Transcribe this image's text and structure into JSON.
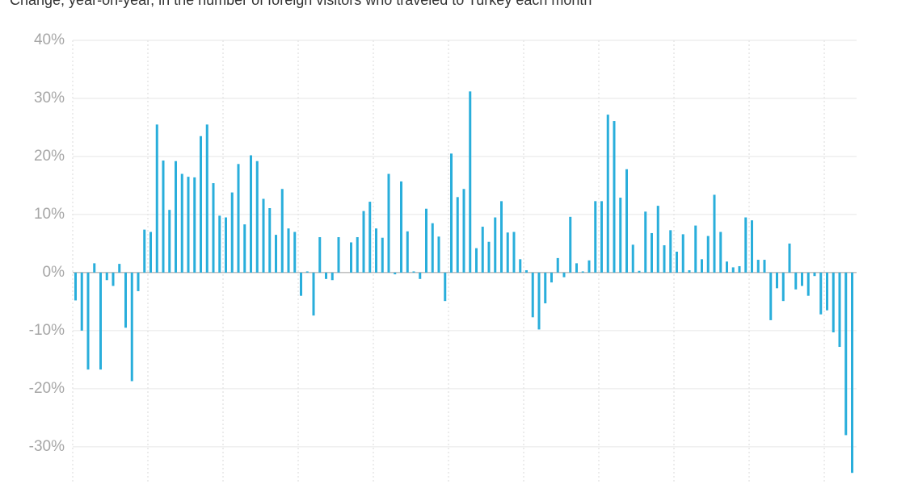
{
  "chart_data": {
    "type": "bar",
    "subtitle": "Change, year-on-year, in the number of foreign visitors who traveled to Turkey each month",
    "color": "#29aedb",
    "ylim": [
      -36,
      40
    ],
    "yticks": [
      {
        "value": 40,
        "label": "40%"
      },
      {
        "value": 30,
        "label": "30%"
      },
      {
        "value": 20,
        "label": "20%"
      },
      {
        "value": 10,
        "label": "10%"
      },
      {
        "value": 0,
        "label": "0%"
      },
      {
        "value": -10,
        "label": "-10%"
      },
      {
        "value": -20,
        "label": "-20%"
      },
      {
        "value": -30,
        "label": "-30%"
      }
    ],
    "grid": true,
    "values": [
      -4.8,
      -10,
      -16.7,
      1.6,
      -16.7,
      -1.3,
      -2.3,
      1.5,
      -9.5,
      -18.7,
      -3.2,
      7.4,
      7.0,
      25.5,
      19.3,
      10.8,
      19.2,
      17,
      16.5,
      16.4,
      23.5,
      25.5,
      15.4,
      9.8,
      9.5,
      13.8,
      18.7,
      8.3,
      20.2,
      19.2,
      12.7,
      11.1,
      6.5,
      14.4,
      7.6,
      7.0,
      -4.0,
      0.2,
      -7.4,
      6.1,
      -1.1,
      -1.3,
      6.1,
      0,
      5.2,
      6.1,
      10.6,
      12.2,
      7.6,
      6.0,
      17.0,
      -0.3,
      15.7,
      7.1,
      0.2,
      -1.1,
      11.0,
      8.5,
      6.2,
      -4.9,
      20.5,
      13.0,
      14.4,
      31.2,
      4.2,
      7.9,
      5.3,
      9.5,
      12.3,
      6.9,
      7.0,
      2.3,
      0.4,
      -7.7,
      -9.8,
      -5.3,
      -1.7,
      2.5,
      -0.8,
      9.6,
      1.6,
      0.2,
      2.1,
      12.3,
      12.3,
      27.2,
      26.1,
      12.9,
      17.8,
      4.8,
      0.3,
      10.5,
      6.8,
      11.5,
      4.7,
      7.3,
      3.6,
      6.6,
      0.4,
      8.1,
      2.3,
      6.3,
      13.4,
      7.0,
      1.9,
      0.9,
      1.1,
      9.5,
      9.0,
      2.2,
      2.2,
      -8.2,
      -2.7,
      -4.9,
      5.0,
      -2.9,
      -2.3,
      -4.0,
      -0.6,
      -7.2,
      -6.5,
      -10.3,
      -12.8,
      -28,
      -34.5
    ]
  }
}
